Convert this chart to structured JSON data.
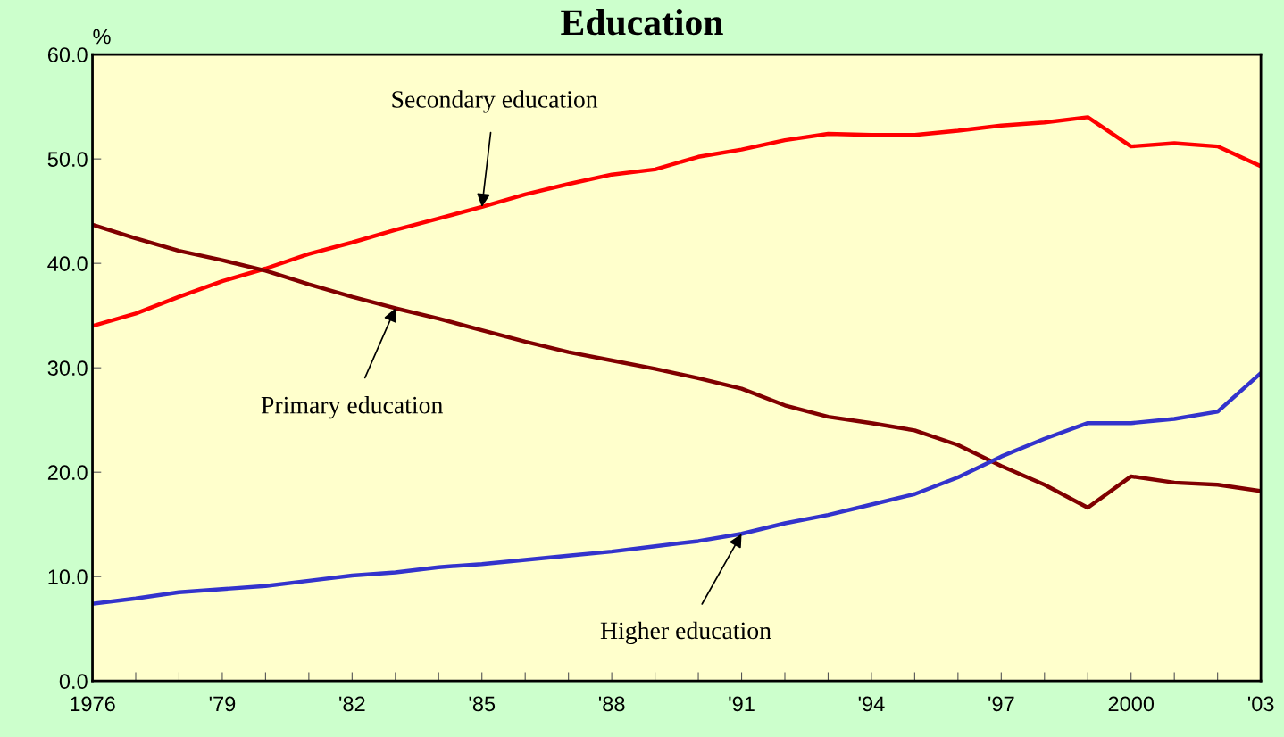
{
  "chart_data": {
    "type": "line",
    "title": "Education",
    "ylabel": "%",
    "x": [
      1976,
      1977,
      1978,
      1979,
      1980,
      1981,
      1982,
      1983,
      1984,
      1985,
      1986,
      1987,
      1988,
      1989,
      1990,
      1991,
      1992,
      1993,
      1994,
      1995,
      1996,
      1997,
      1998,
      1999,
      2000,
      2001,
      2002,
      2003
    ],
    "series": [
      {
        "name": "Secondary education",
        "color": "#ff0000",
        "values": [
          34.0,
          35.2,
          36.8,
          38.3,
          39.5,
          40.9,
          42.0,
          43.2,
          44.3,
          45.4,
          46.6,
          47.6,
          48.5,
          49.0,
          50.2,
          50.9,
          51.8,
          52.4,
          52.3,
          52.3,
          52.7,
          53.2,
          53.5,
          54.0,
          51.2,
          51.5,
          51.2,
          49.3
        ]
      },
      {
        "name": "Primary education",
        "color": "#800000",
        "values": [
          43.7,
          42.4,
          41.2,
          40.3,
          39.3,
          38.0,
          36.8,
          35.7,
          34.7,
          33.6,
          32.5,
          31.5,
          30.7,
          29.9,
          29.0,
          28.0,
          26.4,
          25.3,
          24.7,
          24.0,
          22.6,
          20.6,
          18.8,
          16.6,
          19.6,
          19.0,
          18.8,
          18.2
        ]
      },
      {
        "name": "Higher education",
        "color": "#3333cc",
        "values": [
          7.4,
          7.9,
          8.5,
          8.8,
          9.1,
          9.6,
          10.1,
          10.4,
          10.9,
          11.2,
          11.6,
          12.0,
          12.4,
          12.9,
          13.4,
          14.1,
          15.1,
          15.9,
          16.9,
          17.9,
          19.5,
          21.5,
          23.2,
          24.7,
          24.7,
          25.1,
          25.8,
          29.5
        ]
      }
    ],
    "xlim": [
      1976,
      2003
    ],
    "xticks": [
      {
        "value": 1976,
        "label": "1976"
      },
      {
        "value": 1977,
        "label": null
      },
      {
        "value": 1978,
        "label": null
      },
      {
        "value": 1979,
        "label": "'79"
      },
      {
        "value": 1980,
        "label": null
      },
      {
        "value": 1981,
        "label": null
      },
      {
        "value": 1982,
        "label": "'82"
      },
      {
        "value": 1983,
        "label": null
      },
      {
        "value": 1984,
        "label": null
      },
      {
        "value": 1985,
        "label": "'85"
      },
      {
        "value": 1986,
        "label": null
      },
      {
        "value": 1987,
        "label": null
      },
      {
        "value": 1988,
        "label": "'88"
      },
      {
        "value": 1989,
        "label": null
      },
      {
        "value": 1990,
        "label": null
      },
      {
        "value": 1991,
        "label": "'91"
      },
      {
        "value": 1992,
        "label": null
      },
      {
        "value": 1993,
        "label": null
      },
      {
        "value": 1994,
        "label": "'94"
      },
      {
        "value": 1995,
        "label": null
      },
      {
        "value": 1996,
        "label": null
      },
      {
        "value": 1997,
        "label": "'97"
      },
      {
        "value": 1998,
        "label": null
      },
      {
        "value": 1999,
        "label": null
      },
      {
        "value": 2000,
        "label": "2000"
      },
      {
        "value": 2001,
        "label": null
      },
      {
        "value": 2002,
        "label": null
      },
      {
        "value": 2003,
        "label": "'03"
      }
    ],
    "ylim": [
      0,
      60
    ],
    "yticks": [
      {
        "value": 0,
        "label": "0.0"
      },
      {
        "value": 10,
        "label": "10.0"
      },
      {
        "value": 20,
        "label": "20.0"
      },
      {
        "value": 30,
        "label": "30.0"
      },
      {
        "value": 40,
        "label": "40.0"
      },
      {
        "value": 50,
        "label": "50.0"
      },
      {
        "value": 60,
        "label": "60.0"
      }
    ],
    "grid": false,
    "legend": false,
    "marker": "none",
    "line_style": "solid"
  }
}
